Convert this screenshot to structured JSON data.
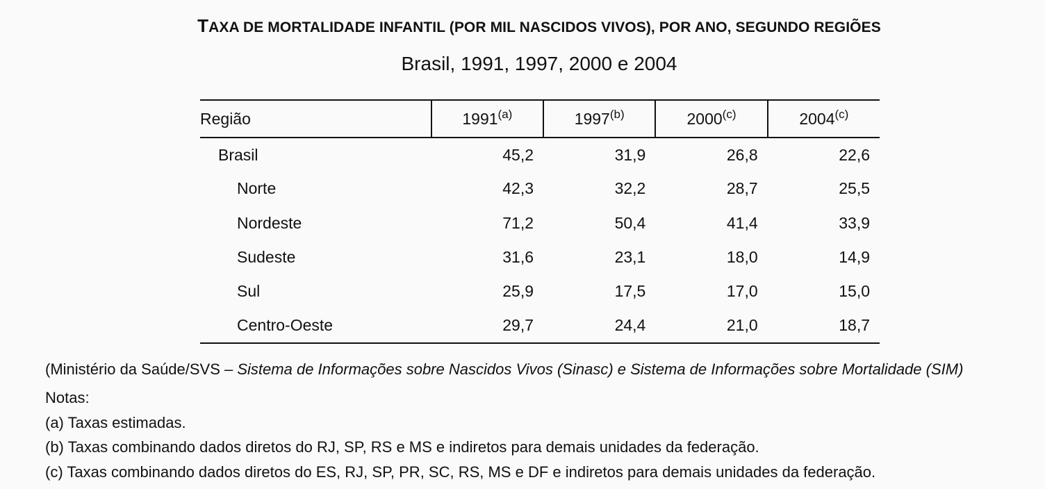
{
  "title": {
    "first_letter": "T",
    "rest": "AXA DE MORTALIDADE INFANTIL (POR MIL NASCIDOS VIVOS), POR ANO, SEGUNDO REGIÕES"
  },
  "subtitle": "Brasil, 1991, 1997, 2000 e 2004",
  "table": {
    "region_header": "Região",
    "years": [
      {
        "year": "1991",
        "note": "(a)"
      },
      {
        "year": "1997",
        "note": "(b)"
      },
      {
        "year": "2000",
        "note": "(c)"
      },
      {
        "year": "2004",
        "note": "(c)"
      }
    ],
    "rows": [
      {
        "region": "Brasil",
        "values": [
          "45,2",
          "31,9",
          "26,8",
          "22,6"
        ]
      },
      {
        "region": "Norte",
        "values": [
          "42,3",
          "32,2",
          "28,7",
          "25,5"
        ]
      },
      {
        "region": "Nordeste",
        "values": [
          "71,2",
          "50,4",
          "41,4",
          "33,9"
        ]
      },
      {
        "region": "Sudeste",
        "values": [
          "31,6",
          "23,1",
          "18,0",
          "14,9"
        ]
      },
      {
        "region": "Sul",
        "values": [
          "25,9",
          "17,5",
          "17,0",
          "15,0"
        ]
      },
      {
        "region": "Centro-Oeste",
        "values": [
          "29,7",
          "24,4",
          "21,0",
          "18,7"
        ]
      }
    ]
  },
  "source": {
    "prefix": "(Ministério da Saúde/SVS – ",
    "italic": "Sistema de Informações sobre Nascidos Vivos (Sinasc) e Sistema de Informações sobre Mortalidade (SIM)"
  },
  "notes": {
    "label": "Notas:",
    "items": [
      "(a) Taxas estimadas.",
      "(b) Taxas combinando dados diretos do RJ, SP, RS e MS e indiretos para demais unidades da federação.",
      "(c) Taxas combinando dados diretos do ES, RJ, SP, PR, SC, RS, MS e DF e indiretos para demais unidades da federação."
    ]
  }
}
